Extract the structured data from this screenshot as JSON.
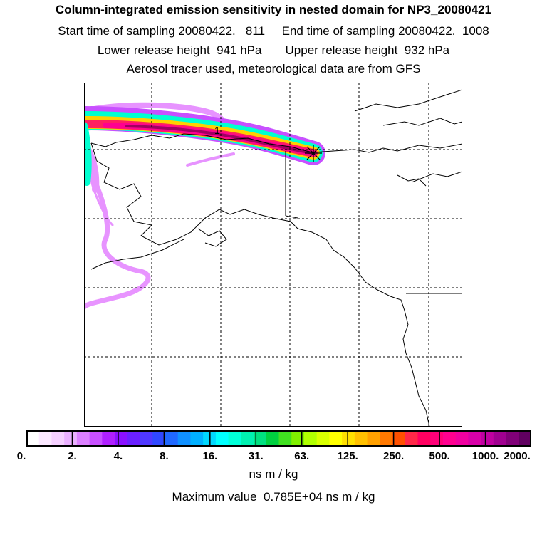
{
  "header": {
    "title": "Column-integrated emission sensitivity in nested domain for NP3_20080421",
    "line2": "Start time of sampling 20080422.   811     End time of sampling 20080422.  1008",
    "line3": "Lower release height  941 hPa       Upper release height  932 hPa",
    "line4": "Aerosol tracer used, meteorological data are from GFS"
  },
  "map": {
    "contour_label": "1",
    "release_marker": "star-icon",
    "colors": {
      "plume_low": "#e070ff",
      "plume_mid": "#00ffd0",
      "plume_high": "#ff0090",
      "plume_core": "#a00060"
    }
  },
  "colorbar": {
    "tick_labels": [
      "0.",
      "2.",
      "4.",
      "8.",
      "16.",
      "31.",
      "63.",
      "125.",
      "250.",
      "500.",
      "1000.",
      "2000."
    ],
    "colors": [
      "#ffffff",
      "#fbe8ff",
      "#f5d0ff",
      "#eab0ff",
      "#dc80ff",
      "#c850ff",
      "#b020ff",
      "#8a10ff",
      "#6a20ff",
      "#5038ff",
      "#3048ff",
      "#2068ff",
      "#1090ff",
      "#00b0ff",
      "#00d8ff",
      "#00ffff",
      "#00ffd8",
      "#00f0b0",
      "#00e080",
      "#00d040",
      "#40e020",
      "#80f000",
      "#b0ff00",
      "#d8ff00",
      "#ffff00",
      "#ffe000",
      "#ffc000",
      "#ffa000",
      "#ff7800",
      "#ff5000",
      "#ff2848",
      "#ff0060",
      "#ff0078",
      "#ff0090",
      "#f000a0",
      "#d800a8",
      "#c000a0",
      "#a00090",
      "#800078",
      "#600060"
    ],
    "units": "ns m / kg",
    "max_value_text": "Maximum value  0.785E+04 ns m / kg"
  }
}
